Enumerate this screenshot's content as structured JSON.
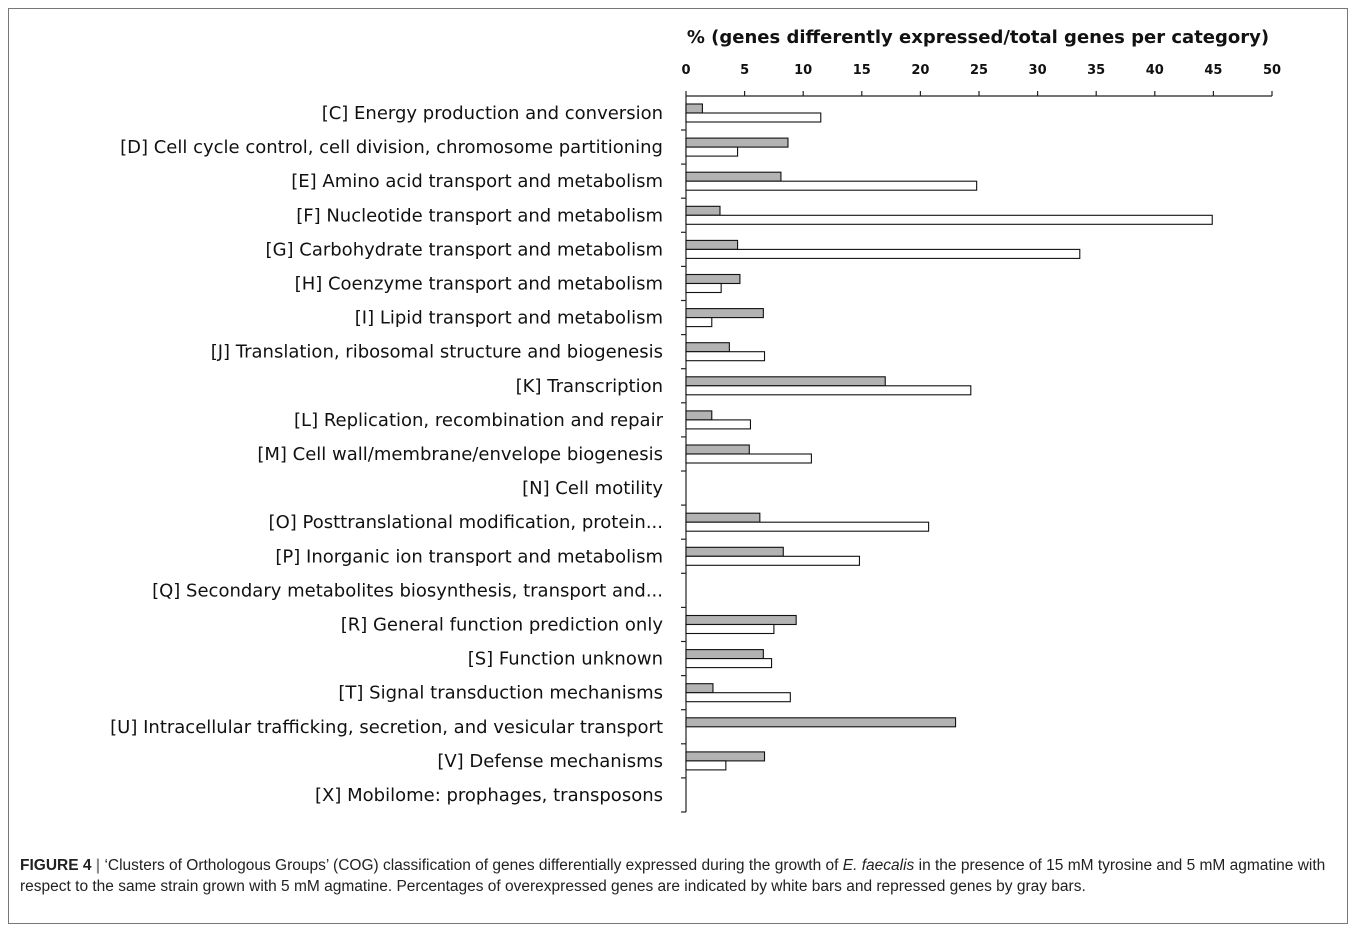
{
  "chart_data": {
    "type": "bar",
    "orientation": "horizontal",
    "title": "% (genes differently expressed/total genes per category)",
    "xlim": [
      0,
      50
    ],
    "xticks": [
      0,
      5,
      10,
      15,
      20,
      25,
      30,
      35,
      40,
      45,
      50
    ],
    "grid": false,
    "legend": "none",
    "categories": [
      "[C] Energy production and conversion",
      "[D] Cell cycle control, cell division, chromosome partitioning",
      "[E] Amino acid transport and metabolism",
      "[F] Nucleotide transport and metabolism",
      "[G] Carbohydrate transport and metabolism",
      "[H] Coenzyme transport and metabolism",
      "[I] Lipid transport and metabolism",
      "[J] Translation, ribosomal structure and biogenesis",
      "[K] Transcription",
      "[L] Replication, recombination and repair",
      "[M] Cell wall/membrane/envelope biogenesis",
      "[N] Cell motility",
      "[O] Posttranslational modification, protein...",
      "[P] Inorganic ion transport and metabolism",
      "[Q] Secondary metabolites biosynthesis, transport and...",
      "[R] General function prediction only",
      "[S] Function unknown",
      "[T] Signal transduction mechanisms",
      "[U] Intracellular trafficking, secretion, and vesicular transport",
      "[V] Defense mechanisms",
      "[X] Mobilome: prophages, transposons"
    ],
    "series": [
      {
        "color": "#b3b3b3",
        "values": [
          1.4,
          8.7,
          8.1,
          2.9,
          4.4,
          4.6,
          6.6,
          3.7,
          17.0,
          2.2,
          5.4,
          0,
          6.3,
          8.3,
          0,
          9.4,
          6.6,
          2.3,
          23.0,
          6.7,
          0
        ]
      },
      {
        "color": "#ffffff",
        "values": [
          11.5,
          4.4,
          24.8,
          44.9,
          33.6,
          3.0,
          2.2,
          6.7,
          24.3,
          5.5,
          10.7,
          0,
          20.7,
          14.8,
          0,
          7.5,
          7.3,
          8.9,
          0,
          3.4,
          0
        ]
      }
    ]
  },
  "caption": {
    "label": "FIGURE 4",
    "separator": "|",
    "text_before_italic": "‘Clusters of Orthologous Groups’ (COG) classification of genes differentially expressed during the growth of",
    "italic": "E. faecalis",
    "text_after_italic": "in the presence of 15 mM tyrosine and 5 mM agmatine with respect to the same strain grown with 5 mM agmatine. Percentages of overexpressed genes are indicated by white bars and repressed genes by gray bars."
  }
}
